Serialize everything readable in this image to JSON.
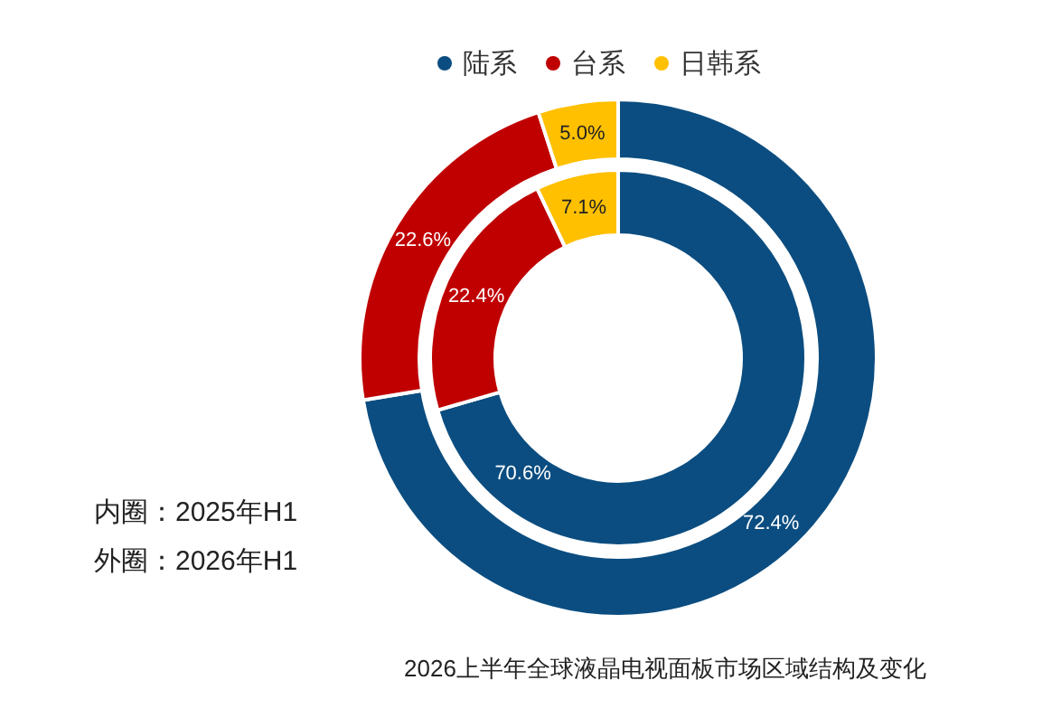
{
  "chart_data": {
    "type": "donut",
    "categories": [
      "陆系",
      "台系",
      "日韩系"
    ],
    "colors": [
      "#0b4d80",
      "#c00000",
      "#ffc000"
    ],
    "series": [
      {
        "values": [
          70.6,
          22.4,
          7.1
        ],
        "value_labels": [
          "70.6%",
          "22.4%",
          "7.1%"
        ]
      },
      {
        "values": [
          72.4,
          22.6,
          5.0
        ],
        "value_labels": [
          "72.4%",
          "22.6%",
          "5.0%"
        ]
      }
    ],
    "legend": "top",
    "annotations": [
      "内圈：2025年H1",
      "外圈：2026年H1",
      "2026上半年全球液晶电视面板市场区域结构及变化"
    ]
  }
}
